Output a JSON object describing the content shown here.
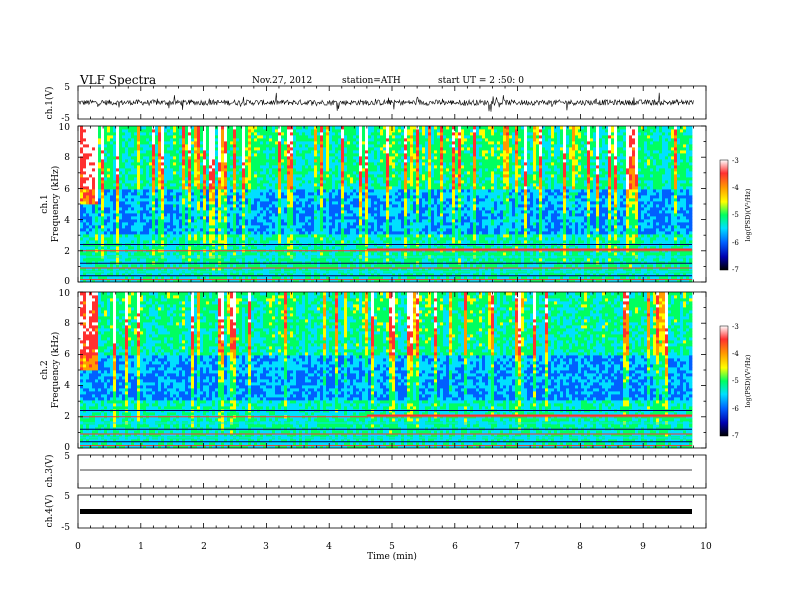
{
  "header": {
    "title": "VLF  Spectra",
    "date": "Nov.27, 2012",
    "station": "station=ATH",
    "start": "start  UT  =   2 :50: 0"
  },
  "x_axis": {
    "label": "Time  (min)",
    "ticks": [
      "0",
      "1",
      "2",
      "3",
      "4",
      "5",
      "6",
      "7",
      "8",
      "9",
      "10"
    ],
    "range": [
      0,
      10
    ]
  },
  "panels": {
    "ch1_wave": {
      "ylabel": "ch.1(V)",
      "ticks": [
        "5",
        "-5"
      ]
    },
    "spec1": {
      "ylabel_ch": "ch.1",
      "ylabel": "Frequency  (kHz)",
      "ticks": [
        "0",
        "2",
        "4",
        "6",
        "8",
        "10"
      ]
    },
    "spec2": {
      "ylabel_ch": "ch.2",
      "ylabel": "Frequency  (kHz)",
      "ticks": [
        "0",
        "2",
        "4",
        "6",
        "8",
        "10"
      ]
    },
    "ch3_wave": {
      "ylabel": "ch.3(V)",
      "ticks": [
        "5"
      ]
    },
    "ch4_wave": {
      "ylabel": "ch.4(V)",
      "ticks": [
        "5",
        "-5"
      ]
    }
  },
  "colorbars": {
    "label": "log(PSD)(V²/Hz)",
    "ticks": [
      "-3",
      "-4",
      "-5",
      "-6",
      "-7"
    ],
    "colors": [
      "#ffffff",
      "#ff3030",
      "#ff9a00",
      "#ffff00",
      "#00ff60",
      "#00e0ff",
      "#0060ff",
      "#0000b0",
      "#000000"
    ]
  },
  "chart_data": [
    {
      "type": "line",
      "name_hint": "ch.1 waveform",
      "xlabel": "Time  (min)",
      "ylabel": "ch.1(V)",
      "xlim": [
        0,
        9.8
      ],
      "ylim": [
        -5,
        5
      ],
      "mean": 0.0,
      "amplitude": 1.2
    },
    {
      "type": "heatmap",
      "xlabel": "Time  (min)",
      "ylabel": "Frequency  (kHz)",
      "xlim": [
        0,
        9.8
      ],
      "ylim": [
        0,
        10
      ],
      "zlim": [
        -7,
        -3
      ],
      "colorbar_label": "log(PSD)(V²/Hz)",
      "step_change_time_min": 4.6
    },
    {
      "type": "heatmap",
      "xlabel": "Time  (min)",
      "ylabel": "Frequency  (kHz)",
      "xlim": [
        0,
        9.8
      ],
      "ylim": [
        0,
        10
      ],
      "zlim": [
        -7,
        -3
      ],
      "colorbar_label": "log(PSD)(V²/Hz)",
      "step_change_time_min": 4.6
    },
    {
      "type": "line",
      "name_hint": "ch.3 waveform",
      "ylabel": "ch.3(V)",
      "xlim": [
        0,
        9.8
      ],
      "ylim": [
        -5,
        5
      ],
      "mean": 0.0
    },
    {
      "type": "line",
      "name_hint": "ch.4 waveform",
      "ylabel": "ch.4(V)",
      "xlim": [
        0,
        9.8
      ],
      "ylim": [
        -5,
        5
      ],
      "mean": 0.0
    }
  ]
}
